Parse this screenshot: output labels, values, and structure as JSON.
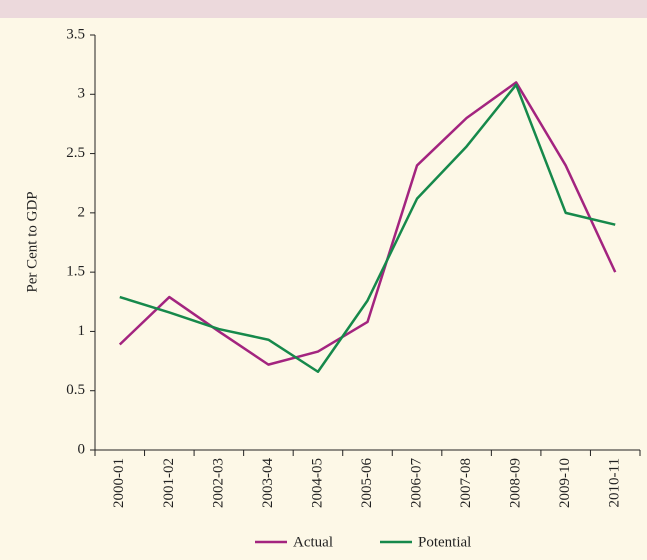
{
  "chart_data": {
    "type": "line",
    "y_label": "Per Cent to GDP",
    "categories": [
      "2000-01",
      "2001-02",
      "2002-03",
      "2003-04",
      "2004-05",
      "2005-06",
      "2006-07",
      "2007-08",
      "2008-09",
      "2009-10",
      "2010-11"
    ],
    "series": [
      {
        "name": "Actual",
        "color": "#a3247f",
        "values": [
          0.89,
          1.29,
          1.0,
          0.72,
          0.83,
          1.08,
          2.4,
          2.8,
          3.1,
          2.4,
          1.5
        ]
      },
      {
        "name": "Potential",
        "color": "#16894b",
        "values": [
          1.29,
          1.16,
          1.02,
          0.93,
          0.66,
          1.26,
          2.12,
          2.56,
          3.08,
          2.0,
          1.9
        ]
      }
    ],
    "ylim": [
      0,
      3.5
    ],
    "yticks": [
      0,
      0.5,
      1,
      1.5,
      2,
      2.5,
      3,
      3.5
    ],
    "grid": false
  }
}
